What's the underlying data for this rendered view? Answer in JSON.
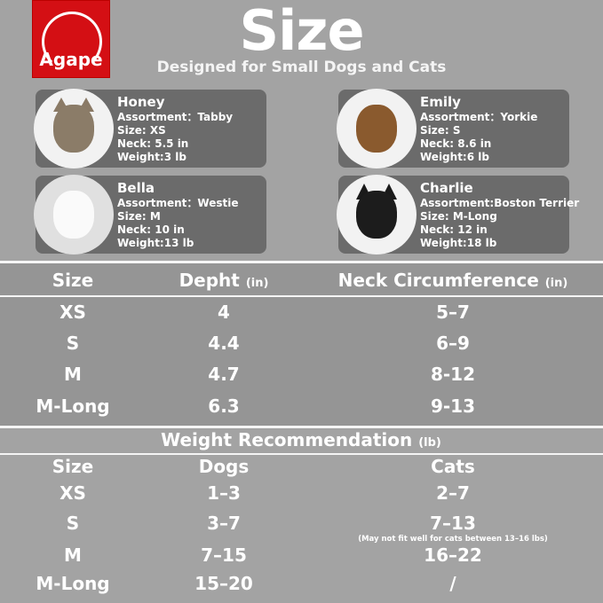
{
  "brand": {
    "logo_text": "Agape",
    "color": "#d40f14"
  },
  "header": {
    "title": "Size",
    "subtitle": "Designed for Small Dogs and Cats"
  },
  "pets": [
    {
      "name": "Honey",
      "assortment": "Assortment：Tabby",
      "size": "Size: XS",
      "neck": "Neck: 5.5 in",
      "weight": "Weight:3 lb",
      "icon": "tabby-kitten-photo"
    },
    {
      "name": "Emily",
      "assortment": "Assortment：Yorkie",
      "size": "Size: S",
      "neck": "Neck: 8.6 in",
      "weight": "Weight:6 lb",
      "icon": "yorkie-photo"
    },
    {
      "name": "Bella",
      "assortment": "Assortment：Westie",
      "size": "Size: M",
      "neck": "Neck: 10 in",
      "weight": "Weight:13 lb",
      "icon": "westie-photo"
    },
    {
      "name": "Charlie",
      "assortment": "Assortment:Boston Terrier",
      "size": "Size: M-Long",
      "neck": "Neck: 12 in",
      "weight": "Weight:18 lb",
      "icon": "terrier-photo"
    }
  ],
  "size_table": {
    "headers": {
      "size": "Size",
      "depth": "Depht",
      "depth_unit": "(in)",
      "neck": "Neck Circumference",
      "neck_unit": "(in)"
    },
    "rows": [
      {
        "size": "XS",
        "depth": "4",
        "neck": "5–7"
      },
      {
        "size": "S",
        "depth": "4.4",
        "neck": "6–9"
      },
      {
        "size": "M",
        "depth": "4.7",
        "neck": "8-12"
      },
      {
        "size": "M-Long",
        "depth": "6.3",
        "neck": "9-13"
      }
    ]
  },
  "weight_table": {
    "title": "Weight Recommendation",
    "title_unit": "(lb)",
    "headers": {
      "size": "Size",
      "dogs": "Dogs",
      "cats": "Cats"
    },
    "rows": [
      {
        "size": "XS",
        "dogs": "1–3",
        "cats": "2–7"
      },
      {
        "size": "S",
        "dogs": "3–7",
        "cats": "7–13"
      },
      {
        "size": "M",
        "dogs": "7–15",
        "cats": "16–22"
      },
      {
        "size": "M-Long",
        "dogs": "15–20",
        "cats": "/"
      }
    ],
    "note": "(May not fit well for cats between 13–16 lbs)"
  }
}
